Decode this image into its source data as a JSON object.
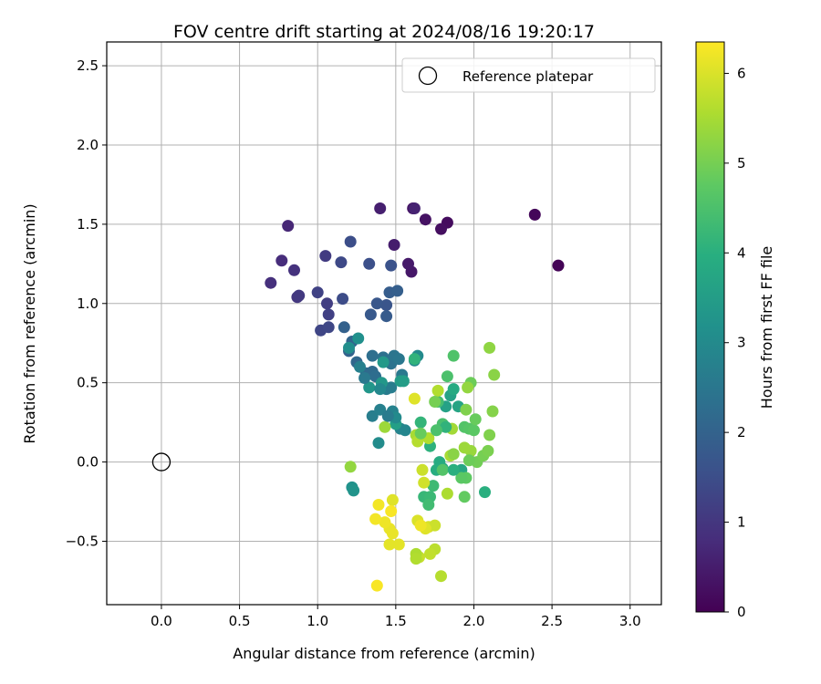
{
  "chart_data": {
    "type": "scatter",
    "title": "FOV centre drift starting at 2024/08/16 19:20:17",
    "xlabel": "Angular distance from reference (arcmin)",
    "ylabel": "Rotation from reference (arcmin)",
    "xlim": [
      -0.35,
      3.2
    ],
    "ylim": [
      -0.9,
      2.65
    ],
    "xticks": [
      0.0,
      0.5,
      1.0,
      1.5,
      2.0,
      2.5,
      3.0
    ],
    "xtick_labels": [
      "0.0",
      "0.5",
      "1.0",
      "1.5",
      "2.0",
      "2.5",
      "3.0"
    ],
    "yticks": [
      -0.5,
      0.0,
      0.5,
      1.0,
      1.5,
      2.0,
      2.5
    ],
    "ytick_labels": [
      "−0.5",
      "0.0",
      "0.5",
      "1.0",
      "1.5",
      "2.0",
      "2.5"
    ],
    "grid": true,
    "legend": {
      "position": "top-right",
      "entries": [
        "Reference platepar"
      ]
    },
    "reference_point": {
      "x": 0.0,
      "y": 0.0,
      "label": "Reference platepar"
    },
    "colorbar": {
      "label": "Hours from first FF file",
      "colormap": "viridis",
      "range": [
        0,
        6.35
      ],
      "ticks": [
        0,
        1,
        2,
        3,
        4,
        5,
        6
      ],
      "tick_labels": [
        "0",
        "1",
        "2",
        "3",
        "4",
        "5",
        "6"
      ]
    },
    "points": [
      [
        2.54,
        1.24,
        0.05
      ],
      [
        2.39,
        1.56,
        0.1
      ],
      [
        1.83,
        1.51,
        0.2
      ],
      [
        1.79,
        1.47,
        0.25
      ],
      [
        1.69,
        1.53,
        0.3
      ],
      [
        1.61,
        1.6,
        0.35
      ],
      [
        1.6,
        1.2,
        0.4
      ],
      [
        1.58,
        1.25,
        0.45
      ],
      [
        1.49,
        1.37,
        0.5
      ],
      [
        1.4,
        1.6,
        0.55
      ],
      [
        1.62,
        1.6,
        0.6
      ],
      [
        0.81,
        1.49,
        0.7
      ],
      [
        0.77,
        1.27,
        0.8
      ],
      [
        0.7,
        1.13,
        0.85
      ],
      [
        0.85,
        1.21,
        0.9
      ],
      [
        0.87,
        1.04,
        1.0
      ],
      [
        0.88,
        1.05,
        1.05
      ],
      [
        1.05,
        1.3,
        1.1
      ],
      [
        1.06,
        1.0,
        1.15
      ],
      [
        1.07,
        0.93,
        1.2
      ],
      [
        1.0,
        1.07,
        1.25
      ],
      [
        1.02,
        0.83,
        1.3
      ],
      [
        1.07,
        0.85,
        1.35
      ],
      [
        1.15,
        1.26,
        1.4
      ],
      [
        1.16,
        1.03,
        1.45
      ],
      [
        1.21,
        1.39,
        1.5
      ],
      [
        1.33,
        1.25,
        1.55
      ],
      [
        1.47,
        1.24,
        1.6
      ],
      [
        1.44,
        0.99,
        1.65
      ],
      [
        1.38,
        1.0,
        1.7
      ],
      [
        1.34,
        0.93,
        1.75
      ],
      [
        1.44,
        0.92,
        1.8
      ],
      [
        1.46,
        1.07,
        1.85
      ],
      [
        1.51,
        1.08,
        1.9
      ],
      [
        1.17,
        0.85,
        1.95
      ],
      [
        1.2,
        0.7,
        2.0
      ],
      [
        1.22,
        0.76,
        2.05
      ],
      [
        1.25,
        0.63,
        2.1
      ],
      [
        1.31,
        0.56,
        2.15
      ],
      [
        1.35,
        0.57,
        2.2
      ],
      [
        1.37,
        0.54,
        2.25
      ],
      [
        1.35,
        0.67,
        2.3
      ],
      [
        1.42,
        0.66,
        2.35
      ],
      [
        1.47,
        0.62,
        2.4
      ],
      [
        1.49,
        0.67,
        2.45
      ],
      [
        1.52,
        0.65,
        2.5
      ],
      [
        1.54,
        0.55,
        2.55
      ],
      [
        1.44,
        0.46,
        2.6
      ],
      [
        1.47,
        0.47,
        2.65
      ],
      [
        1.35,
        0.29,
        2.7
      ],
      [
        1.4,
        0.33,
        2.75
      ],
      [
        1.48,
        0.32,
        2.8
      ],
      [
        1.53,
        0.21,
        2.85
      ],
      [
        1.56,
        0.2,
        2.9
      ],
      [
        1.62,
        0.64,
        2.95
      ],
      [
        1.64,
        0.67,
        3.0
      ],
      [
        1.39,
        0.12,
        3.05
      ],
      [
        1.2,
        0.72,
        3.1
      ],
      [
        1.26,
        0.78,
        3.15
      ],
      [
        1.22,
        -0.16,
        3.2
      ],
      [
        1.23,
        -0.18,
        3.25
      ],
      [
        1.33,
        0.47,
        3.3
      ],
      [
        1.41,
        0.5,
        3.35
      ],
      [
        1.42,
        0.63,
        3.4
      ],
      [
        1.53,
        0.51,
        3.45
      ],
      [
        1.55,
        0.51,
        3.5
      ],
      [
        1.5,
        0.24,
        3.55
      ],
      [
        1.82,
        0.35,
        3.6
      ],
      [
        1.85,
        0.42,
        3.65
      ],
      [
        1.9,
        0.35,
        3.7
      ],
      [
        1.92,
        -0.05,
        3.75
      ],
      [
        1.8,
        -0.04,
        3.8
      ],
      [
        1.87,
        0.46,
        3.85
      ],
      [
        1.78,
        0.0,
        3.9
      ],
      [
        1.76,
        -0.05,
        3.95
      ],
      [
        2.07,
        -0.19,
        4.0
      ],
      [
        1.72,
        0.1,
        4.05
      ],
      [
        1.62,
        0.65,
        4.1
      ],
      [
        1.66,
        0.25,
        4.15
      ],
      [
        1.68,
        -0.22,
        4.2
      ],
      [
        1.72,
        -0.22,
        4.25
      ],
      [
        1.74,
        -0.15,
        4.3
      ],
      [
        1.71,
        -0.27,
        4.35
      ],
      [
        1.77,
        0.38,
        4.4
      ],
      [
        1.8,
        0.24,
        4.45
      ],
      [
        1.83,
        0.54,
        4.5
      ],
      [
        1.87,
        0.67,
        4.55
      ],
      [
        1.94,
        0.22,
        4.6
      ],
      [
        1.97,
        0.21,
        4.65
      ],
      [
        2.0,
        0.2,
        4.7
      ],
      [
        1.95,
        -0.1,
        4.75
      ],
      [
        1.94,
        -0.22,
        4.8
      ],
      [
        2.01,
        0.27,
        4.85
      ],
      [
        1.98,
        0.5,
        4.9
      ],
      [
        2.02,
        0.0,
        4.95
      ],
      [
        2.06,
        0.04,
        5.0
      ],
      [
        2.09,
        0.07,
        5.05
      ],
      [
        2.1,
        0.17,
        5.1
      ],
      [
        2.12,
        0.32,
        5.15
      ],
      [
        2.13,
        0.55,
        5.2
      ],
      [
        2.1,
        0.72,
        5.25
      ],
      [
        1.96,
        0.47,
        5.3
      ],
      [
        1.98,
        0.07,
        5.35
      ],
      [
        1.94,
        0.09,
        5.4
      ],
      [
        1.86,
        0.21,
        5.45
      ],
      [
        1.85,
        0.04,
        5.5
      ],
      [
        1.83,
        -0.2,
        5.55
      ],
      [
        1.77,
        0.45,
        5.6
      ],
      [
        1.79,
        -0.72,
        5.65
      ],
      [
        1.75,
        -0.55,
        5.7
      ],
      [
        1.72,
        -0.58,
        5.75
      ],
      [
        1.65,
        -0.6,
        5.8
      ],
      [
        1.67,
        -0.05,
        5.85
      ],
      [
        1.68,
        -0.13,
        5.9
      ],
      [
        1.71,
        -0.41,
        5.95
      ],
      [
        1.64,
        -0.37,
        6.0
      ],
      [
        1.62,
        0.4,
        6.05
      ],
      [
        1.48,
        -0.24,
        6.05
      ],
      [
        1.52,
        -0.52,
        6.1
      ],
      [
        1.46,
        -0.52,
        6.1
      ],
      [
        1.46,
        -0.42,
        6.15
      ],
      [
        1.48,
        -0.45,
        6.15
      ],
      [
        1.43,
        -0.38,
        6.2
      ],
      [
        1.39,
        -0.27,
        6.25
      ],
      [
        1.37,
        -0.36,
        6.25
      ],
      [
        1.47,
        -0.31,
        6.3
      ],
      [
        1.38,
        -0.78,
        6.3
      ],
      [
        1.21,
        -0.03,
        5.3
      ],
      [
        1.43,
        0.22,
        5.4
      ],
      [
        1.63,
        0.17,
        5.5
      ],
      [
        1.71,
        0.15,
        5.6
      ],
      [
        1.64,
        0.13,
        5.65
      ],
      [
        1.63,
        -0.58,
        5.55
      ],
      [
        1.63,
        -0.61,
        5.6
      ],
      [
        1.75,
        -0.4,
        5.85
      ],
      [
        1.69,
        -0.42,
        6.05
      ],
      [
        1.66,
        -0.4,
        6.2
      ],
      [
        1.87,
        0.05,
        5.2
      ],
      [
        1.95,
        0.33,
        5.1
      ],
      [
        1.8,
        -0.05,
        4.6
      ],
      [
        1.97,
        0.01,
        4.9
      ],
      [
        1.92,
        -0.1,
        4.7
      ],
      [
        1.82,
        0.22,
        4.1
      ],
      [
        1.76,
        0.2,
        4.5
      ],
      [
        1.66,
        0.18,
        4.85
      ],
      [
        1.75,
        0.38,
        5.0
      ],
      [
        1.87,
        -0.05,
        4.0
      ],
      [
        1.3,
        0.53,
        2.55
      ],
      [
        1.27,
        0.6,
        2.75
      ],
      [
        1.4,
        0.46,
        2.95
      ],
      [
        1.5,
        0.28,
        3.0
      ],
      [
        1.45,
        0.29,
        2.6
      ]
    ]
  }
}
